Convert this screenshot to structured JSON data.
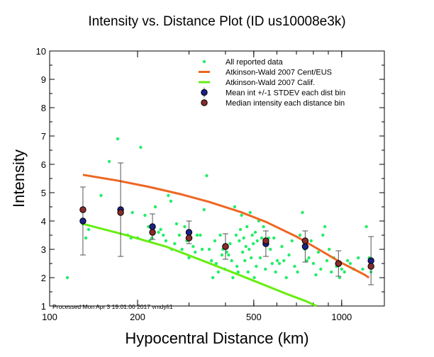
{
  "chart_data": {
    "type": "scatter",
    "title": "Intensity vs. Distance Plot (ID us10008e3k)",
    "xlabel": "Hypocentral Distance (km)",
    "ylabel": "Intensity",
    "x_scale": "log",
    "xlim": [
      100,
      1400
    ],
    "ylim": [
      1,
      10
    ],
    "x_ticks": [
      100,
      200,
      500,
      1000
    ],
    "y_ticks": [
      1,
      2,
      3,
      4,
      5,
      6,
      7,
      8,
      9,
      10
    ],
    "legend_position": "top-right",
    "footnote": "Processed Mon Apr  3 19:01:00 2017 vmdyfi1",
    "colors": {
      "all_data": "#22ee66",
      "cent_eus": "#ee6622",
      "calif": "#66ee11",
      "mean": "#1a2288",
      "median": "#8a2a2a"
    },
    "series": [
      {
        "name": "All reported data",
        "kind": "points",
        "points": [
          [
            115,
            2.0
          ],
          [
            130,
            3.9
          ],
          [
            133,
            3.4
          ],
          [
            136,
            3.7
          ],
          [
            150,
            4.9
          ],
          [
            160,
            6.1
          ],
          [
            171,
            6.9
          ],
          [
            174,
            4.3
          ],
          [
            185,
            3.5
          ],
          [
            190,
            3.4
          ],
          [
            192,
            4.3
          ],
          [
            200,
            3.4
          ],
          [
            205,
            6.6
          ],
          [
            212,
            4.2
          ],
          [
            218,
            3.8
          ],
          [
            220,
            3.3
          ],
          [
            224,
            3.4
          ],
          [
            230,
            4.5
          ],
          [
            236,
            3.6
          ],
          [
            240,
            3.7
          ],
          [
            245,
            3.5
          ],
          [
            250,
            3.3
          ],
          [
            255,
            4.9
          ],
          [
            260,
            4.7
          ],
          [
            262,
            3.0
          ],
          [
            268,
            3.2
          ],
          [
            272,
            3.9
          ],
          [
            278,
            3.5
          ],
          [
            284,
            3.0
          ],
          [
            290,
            3.8
          ],
          [
            295,
            3.3
          ],
          [
            300,
            2.7
          ],
          [
            305,
            3.4
          ],
          [
            310,
            3.1
          ],
          [
            315,
            2.9
          ],
          [
            320,
            3.5
          ],
          [
            328,
            3.5
          ],
          [
            333,
            3.0
          ],
          [
            338,
            4.4
          ],
          [
            345,
            5.6
          ],
          [
            352,
            3.0
          ],
          [
            358,
            2.6
          ],
          [
            362,
            2.0
          ],
          [
            368,
            3.3
          ],
          [
            372,
            2.5
          ],
          [
            378,
            2.2
          ],
          [
            384,
            3.5
          ],
          [
            389,
            2.8
          ],
          [
            392,
            3.0
          ],
          [
            398,
            2.3
          ],
          [
            404,
            2.9
          ],
          [
            410,
            2.8
          ],
          [
            415,
            3.2
          ],
          [
            420,
            2.6
          ],
          [
            424,
            2.0
          ],
          [
            430,
            4.5
          ],
          [
            435,
            3.5
          ],
          [
            438,
            2.4
          ],
          [
            442,
            2.2
          ],
          [
            446,
            3.3
          ],
          [
            450,
            3.7
          ],
          [
            454,
            4.2
          ],
          [
            458,
            2.9
          ],
          [
            462,
            3.4
          ],
          [
            466,
            2.6
          ],
          [
            470,
            3.1
          ],
          [
            474,
            3.8
          ],
          [
            478,
            2.2
          ],
          [
            482,
            3.0
          ],
          [
            486,
            4.3
          ],
          [
            490,
            2.7
          ],
          [
            494,
            3.5
          ],
          [
            498,
            3.2
          ],
          [
            502,
            2.0
          ],
          [
            506,
            3.6
          ],
          [
            510,
            2.4
          ],
          [
            514,
            3.3
          ],
          [
            520,
            4.0
          ],
          [
            526,
            2.7
          ],
          [
            532,
            3.4
          ],
          [
            540,
            3.8
          ],
          [
            548,
            2.3
          ],
          [
            556,
            3.2
          ],
          [
            562,
            3.4
          ],
          [
            570,
            3.0
          ],
          [
            578,
            2.5
          ],
          [
            586,
            3.4
          ],
          [
            594,
            2.2
          ],
          [
            602,
            2.6
          ],
          [
            612,
            2.5
          ],
          [
            624,
            3.1
          ],
          [
            634,
            2.6
          ],
          [
            646,
            2.0
          ],
          [
            660,
            2.8
          ],
          [
            676,
            3.3
          ],
          [
            690,
            2.4
          ],
          [
            706,
            2.2
          ],
          [
            720,
            3.5
          ],
          [
            734,
            4.3
          ],
          [
            748,
            3.0
          ],
          [
            760,
            2.6
          ],
          [
            772,
            2.7
          ],
          [
            786,
            3.3
          ],
          [
            800,
            2.5
          ],
          [
            816,
            2.1
          ],
          [
            832,
            2.9
          ],
          [
            848,
            2.3
          ],
          [
            862,
            3.5
          ],
          [
            876,
            3.8
          ],
          [
            890,
            2.6
          ],
          [
            906,
            3.0
          ],
          [
            922,
            2.2
          ],
          [
            940,
            2.7
          ],
          [
            960,
            2.4
          ],
          [
            984,
            2.0
          ],
          [
            1000,
            2.3
          ],
          [
            1022,
            2.2
          ],
          [
            1048,
            2.6
          ],
          [
            1070,
            2.5
          ],
          [
            1100,
            2.3
          ],
          [
            1140,
            2.7
          ],
          [
            1180,
            2.3
          ],
          [
            1215,
            3.8
          ],
          [
            1242,
            2.7
          ],
          [
            1260,
            2.2
          ]
        ]
      },
      {
        "name": "Atkinson-Wald 2007 Cent/EUS",
        "kind": "line",
        "x": [
          130,
          170,
          220,
          280,
          350,
          450,
          550,
          700,
          850,
          1000,
          1100,
          1200,
          1240
        ],
        "y": [
          5.63,
          5.43,
          5.2,
          4.95,
          4.68,
          4.32,
          3.97,
          3.45,
          2.95,
          2.52,
          2.3,
          2.1,
          2.0
        ]
      },
      {
        "name": "Atkinson-Wald 2007 Calif.",
        "kind": "line",
        "x": [
          130,
          180,
          250,
          350,
          450,
          550,
          650,
          750,
          820
        ],
        "y": [
          3.9,
          3.52,
          3.1,
          2.52,
          2.08,
          1.72,
          1.42,
          1.18,
          1.0
        ]
      },
      {
        "name": "Mean int +/-1 STDEV each dist bin",
        "kind": "errorbar",
        "x": [
          130,
          175,
          225,
          300,
          400,
          550,
          750,
          975,
          1260
        ],
        "y": [
          4.0,
          4.4,
          3.8,
          3.6,
          3.1,
          3.2,
          3.1,
          2.5,
          2.6
        ],
        "err": [
          1.2,
          1.65,
          0.45,
          0.4,
          0.45,
          0.45,
          0.55,
          0.45,
          0.85
        ]
      },
      {
        "name": "Median intensity each distance bin",
        "kind": "points",
        "x": [
          130,
          175,
          225,
          300,
          400,
          550,
          750,
          975,
          1260
        ],
        "y": [
          4.4,
          4.3,
          3.6,
          3.4,
          3.1,
          3.3,
          3.3,
          2.5,
          2.4
        ]
      }
    ]
  }
}
